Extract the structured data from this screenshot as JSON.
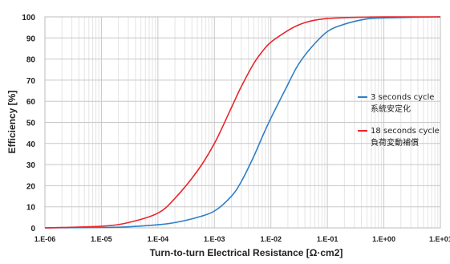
{
  "chart_data": {
    "type": "line",
    "xlabel": "Turn-to-turn Electrical Resistance [Ω·cm2]",
    "ylabel": "Efficiency [%]",
    "x_scale": "log",
    "x_ticks": [
      "1.E-06",
      "1.E-05",
      "1.E-04",
      "1.E-03",
      "1.E-02",
      "1.E-01",
      "1.E+00",
      "1.E+01"
    ],
    "xlim": [
      1e-06,
      10
    ],
    "ylim": [
      0,
      100
    ],
    "y_ticks": [
      "0",
      "10",
      "20",
      "30",
      "40",
      "50",
      "60",
      "70",
      "80",
      "90",
      "100"
    ],
    "grid": true,
    "legend_position": "right",
    "x": [
      1e-06,
      1e-05,
      3e-05,
      0.0001,
      0.0002,
      0.0005,
      0.001,
      0.002,
      0.003,
      0.005,
      0.007,
      0.01,
      0.02,
      0.03,
      0.05,
      0.1,
      0.2,
      0.5,
      1,
      10
    ],
    "series": [
      {
        "name": "3 seconds cycle",
        "name2": "系統安定化",
        "color": "#2e7fc7",
        "values": [
          0,
          0.2,
          0.5,
          1.5,
          2.5,
          5,
          8,
          15,
          22,
          34,
          43,
          52,
          68,
          77,
          85,
          93,
          96.5,
          99,
          99.5,
          100
        ]
      },
      {
        "name": "18 seconds cycle",
        "name2": "負荷変動補償",
        "color": "#e8262b",
        "values": [
          0,
          0.8,
          2.5,
          7,
          14,
          27,
          40,
          57,
          67,
          78,
          83.5,
          88,
          93.5,
          96,
          98,
          99.2,
          99.6,
          99.9,
          100,
          100
        ]
      }
    ]
  }
}
